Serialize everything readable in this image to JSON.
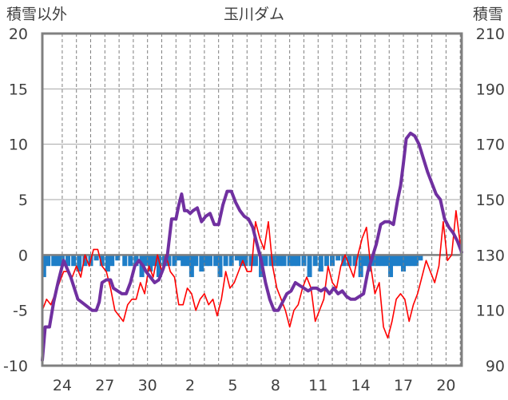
{
  "chart_data": {
    "type": "line",
    "title": "玉川ダム",
    "ylabel_left": "積雪以外",
    "ylabel_right": "積雪",
    "left_axis": {
      "min": -10,
      "max": 20,
      "ticks": [
        20,
        15,
        10,
        5,
        0,
        -5,
        -10
      ]
    },
    "right_axis": {
      "min": 90,
      "max": 210,
      "ticks": [
        210,
        190,
        170,
        150,
        130,
        110,
        90
      ]
    },
    "x_ticks": [
      "24",
      "27",
      "30",
      "2",
      "5",
      "8",
      "11",
      "14",
      "17",
      "20"
    ],
    "x_range": [
      0,
      29.5
    ],
    "x_tick_positions": [
      1.4,
      4.4,
      7.4,
      10.4,
      13.4,
      16.4,
      19.4,
      22.4,
      25.4,
      28.4
    ],
    "grid": "vertical dashed daily, horizontal solid",
    "colors": {
      "temperature": "#ff0000",
      "snow_depth": "#7030a0",
      "precip": "#1e7ec8",
      "frame": "#808080"
    },
    "series": [
      {
        "axis": "left",
        "style": "line",
        "color": "#ff0000",
        "x": [
          0,
          0.3,
          0.6,
          0.9,
          1.2,
          1.5,
          1.8,
          2.1,
          2.4,
          2.7,
          3.0,
          3.3,
          3.6,
          3.9,
          4.2,
          4.5,
          4.8,
          5.1,
          5.4,
          5.7,
          6.0,
          6.3,
          6.6,
          6.9,
          7.2,
          7.5,
          7.8,
          8.1,
          8.4,
          8.7,
          9.0,
          9.3,
          9.6,
          9.9,
          10.2,
          10.5,
          10.8,
          11.1,
          11.4,
          11.7,
          12.0,
          12.3,
          12.6,
          12.9,
          13.2,
          13.5,
          13.8,
          14.1,
          14.4,
          14.7,
          15.0,
          15.3,
          15.6,
          15.9,
          16.2,
          16.5,
          16.8,
          17.1,
          17.4,
          17.7,
          18.0,
          18.3,
          18.6,
          18.9,
          19.2,
          19.5,
          19.8,
          20.1,
          20.4,
          20.7,
          21.0,
          21.3,
          21.6,
          21.9,
          22.2,
          22.5,
          22.8,
          23.1,
          23.4,
          23.7,
          24.0,
          24.3,
          24.6,
          24.9,
          25.2,
          25.5,
          25.8,
          26.1,
          26.4,
          26.7,
          27.0,
          27.3,
          27.6,
          27.9,
          28.2,
          28.5,
          28.8,
          29.1,
          29.5
        ],
        "values": [
          -5,
          -4,
          -4.5,
          -3.5,
          -2.5,
          -1.5,
          -1.5,
          -2,
          -1,
          -2,
          0,
          -1,
          0.5,
          0.5,
          -1,
          -1.5,
          -3,
          -5,
          -5.5,
          -6,
          -4.5,
          -4,
          -4,
          -2.5,
          -3.5,
          -1,
          -2,
          0,
          -1.5,
          0,
          -1.5,
          -2,
          -4.5,
          -4.5,
          -3,
          -3.5,
          -5,
          -4,
          -3.5,
          -4.5,
          -4,
          -5.5,
          -4,
          -1.5,
          -3,
          -2.5,
          -1.5,
          -0.5,
          -1.5,
          -1.5,
          3,
          1.5,
          0.5,
          3,
          -1,
          -3,
          -4,
          -5,
          -6.5,
          -5,
          -4.5,
          -3,
          -2,
          -3,
          -6,
          -5,
          -4,
          -1,
          -2.5,
          -3,
          -1,
          0,
          -1,
          -2,
          0,
          1.5,
          2.5,
          -1,
          -3.5,
          -2.5,
          -6.5,
          -7.5,
          -6,
          -4,
          -3.5,
          -4,
          -6,
          -4.5,
          -3.5,
          -2,
          -0.5,
          -1.5,
          -2.5,
          -1,
          3,
          -0.5,
          0,
          4,
          0
        ]
      },
      {
        "axis": "right",
        "style": "line",
        "color": "#7030a0",
        "x": [
          0,
          0.2,
          0.5,
          0.8,
          1.1,
          1.3,
          1.5,
          2.0,
          2.5,
          3.0,
          3.5,
          3.8,
          4.0,
          4.2,
          4.5,
          4.8,
          5.0,
          5.3,
          5.6,
          5.9,
          6.2,
          6.5,
          6.8,
          7.1,
          7.3,
          7.6,
          7.9,
          8.2,
          8.5,
          8.8,
          9.1,
          9.4,
          9.6,
          9.8,
          10.0,
          10.2,
          10.4,
          10.6,
          10.9,
          11.2,
          11.5,
          11.8,
          12.1,
          12.4,
          12.7,
          13.0,
          13.3,
          13.6,
          13.9,
          14.2,
          14.5,
          14.8,
          15.1,
          15.4,
          15.7,
          16.0,
          16.3,
          16.6,
          16.9,
          17.2,
          17.5,
          17.8,
          18.1,
          18.4,
          18.7,
          19.0,
          19.3,
          19.6,
          19.9,
          20.2,
          20.5,
          20.8,
          21.1,
          21.4,
          21.7,
          22.0,
          22.3,
          22.6,
          22.9,
          23.2,
          23.5,
          23.8,
          24.1,
          24.4,
          24.7,
          25.0,
          25.2,
          25.4,
          25.6,
          25.9,
          26.2,
          26.5,
          26.8,
          27.1,
          27.4,
          27.7,
          28.0,
          28.3,
          28.6,
          28.9,
          29.2,
          29.5
        ],
        "values": [
          92,
          104,
          104,
          113,
          120,
          124,
          128,
          122,
          114,
          112,
          110,
          110,
          113,
          120,
          121,
          121,
          118,
          117,
          116,
          116,
          120,
          126,
          128,
          126,
          124,
          122,
          120,
          121,
          125,
          130,
          143,
          143,
          148,
          152,
          146,
          146,
          145,
          146,
          147,
          142,
          144,
          145,
          141,
          141,
          148,
          153,
          153,
          149,
          146,
          144,
          143,
          140,
          134,
          128,
          120,
          114,
          110,
          110,
          113,
          116,
          117,
          120,
          119,
          118,
          117,
          118,
          118,
          117,
          118,
          116,
          118,
          116,
          117,
          115,
          114,
          114,
          115,
          116,
          124,
          129,
          134,
          141,
          142,
          142,
          141,
          150,
          155,
          163,
          172,
          174,
          173,
          170,
          165,
          160,
          156,
          152,
          150,
          143,
          140,
          138,
          135,
          131
        ]
      },
      {
        "axis": "left",
        "style": "bars-downward",
        "color": "#1e7ec8",
        "x": [
          0.1,
          0.4,
          0.8,
          1.1,
          1.4,
          1.8,
          2.2,
          2.6,
          3.0,
          3.4,
          3.8,
          4.2,
          4.6,
          4.9,
          5.3,
          5.8,
          6.2,
          6.6,
          7.0,
          7.3,
          7.6,
          7.9,
          8.2,
          8.6,
          8.9,
          9.3,
          9.6,
          9.9,
          10.2,
          10.5,
          10.8,
          11.2,
          11.5,
          11.8,
          12.2,
          12.5,
          12.9,
          13.3,
          13.7,
          14.0,
          14.3,
          14.7,
          15.0,
          15.4,
          15.7,
          16.1,
          16.4,
          16.7,
          17.0,
          17.4,
          17.7,
          18.0,
          18.4,
          18.8,
          19.2,
          19.6,
          20.0,
          20.4,
          20.8,
          21.2,
          21.6,
          22.0,
          22.4,
          22.7,
          23.0,
          23.3,
          23.6,
          23.9,
          24.2,
          24.5,
          24.8,
          25.1,
          25.4,
          25.7,
          26.0,
          26.3,
          26.6
        ],
        "values": [
          -2,
          -1,
          -1,
          -1,
          -1,
          -1,
          -1,
          -1.5,
          -1,
          -1,
          -0.5,
          -1,
          -1.5,
          -1,
          -0.5,
          -1,
          -1,
          -1,
          -2,
          -1,
          -1.5,
          -1,
          -2,
          -1,
          -1,
          -1,
          -0.5,
          -1,
          -1,
          -2,
          -1,
          -1.5,
          -1,
          -1,
          -1,
          -2,
          -1,
          -1,
          -0.5,
          -1,
          -1,
          -1,
          -1,
          -2,
          -1,
          -1,
          -1,
          -1,
          -1,
          -1,
          -1,
          -1,
          -1,
          -2,
          -1,
          -1.5,
          -1,
          -1,
          -0.5,
          -1,
          -1,
          -1,
          -2,
          -1,
          -1.5,
          -1,
          -1,
          -1,
          -1,
          -2,
          -1,
          -1,
          -1.5,
          -1,
          -1,
          -1,
          -0.5
        ]
      }
    ]
  }
}
